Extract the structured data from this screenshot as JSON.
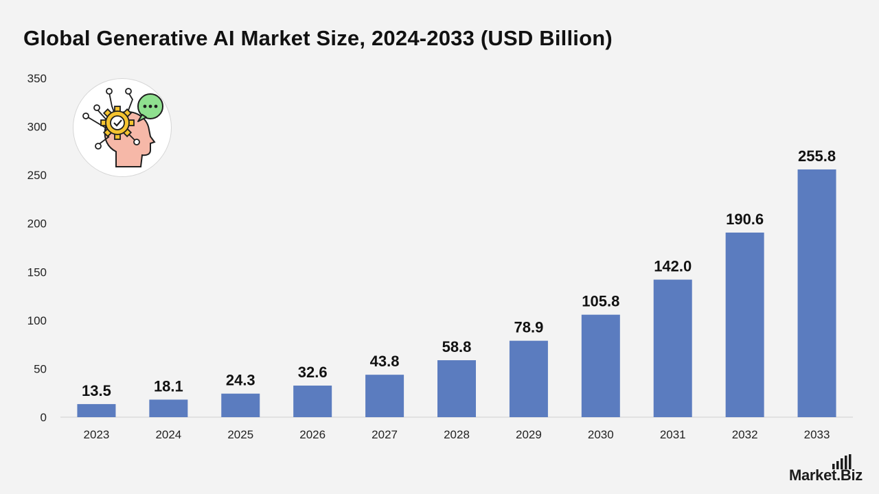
{
  "title": "Global Generative AI Market Size, 2024-2033 (USD Billion)",
  "brand": {
    "name": "Market.Biz"
  },
  "colors": {
    "bar": "#5b7cbf",
    "background": "#f3f3f3",
    "text": "#111111"
  },
  "chart_data": {
    "type": "bar",
    "title": "Global Generative AI Market Size, 2024-2033 (USD Billion)",
    "xlabel": "",
    "ylabel": "",
    "categories": [
      "2023",
      "2024",
      "2025",
      "2026",
      "2027",
      "2028",
      "2029",
      "2030",
      "2031",
      "2032",
      "2033"
    ],
    "values": [
      13.5,
      18.1,
      24.3,
      32.6,
      43.8,
      58.8,
      78.9,
      105.8,
      142.0,
      190.6,
      255.8
    ],
    "value_labels": [
      "13.5",
      "18.1",
      "24.3",
      "32.6",
      "43.8",
      "58.8",
      "78.9",
      "105.8",
      "142.0",
      "190.6",
      "255.8"
    ],
    "ylim": [
      0,
      350
    ],
    "yticks": [
      0,
      50,
      100,
      150,
      200,
      250,
      300,
      350
    ],
    "grid": false,
    "legend": "none"
  }
}
